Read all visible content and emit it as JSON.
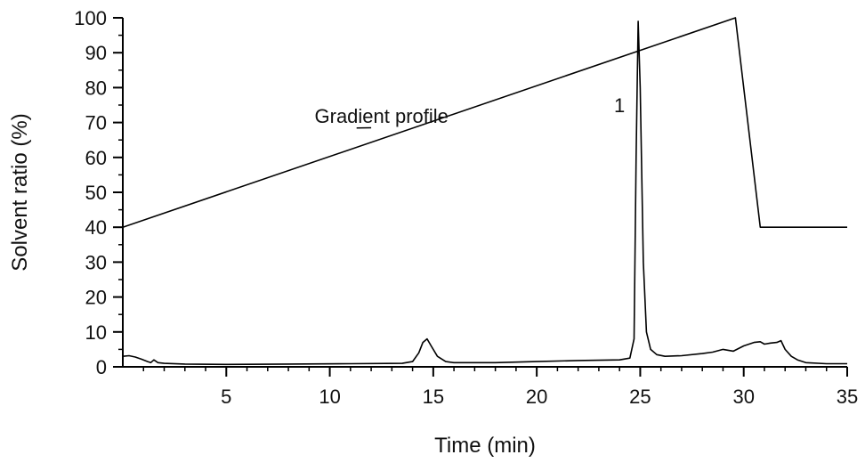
{
  "chart_data": {
    "type": "line",
    "xlabel": "Time (min)",
    "ylabel": "Solvent ratio (%)",
    "xlim": [
      0,
      35
    ],
    "ylim": [
      0,
      100
    ],
    "xticks": [
      "5",
      "10",
      "15",
      "20",
      "25",
      "30",
      "35"
    ],
    "yticks": [
      "0",
      "10",
      "20",
      "30",
      "40",
      "50",
      "60",
      "70",
      "80",
      "90",
      "100"
    ],
    "grid": false,
    "annotations": [
      {
        "text": "Gradient profile",
        "x": 12.5,
        "y": 72,
        "target_x": 12.0,
        "target_y": 68.5
      },
      {
        "text": "1",
        "x": 24.0,
        "y": 73
      }
    ],
    "series": [
      {
        "x": [
          0,
          29.6,
          30.8,
          35
        ],
        "y": [
          40,
          100,
          40,
          40
        ]
      },
      {
        "x": [
          0,
          0.3,
          0.6,
          0.9,
          1.2,
          1.35,
          1.5,
          1.7,
          2.0,
          3.0,
          5.0,
          8.0,
          11.0,
          13.5,
          14.0,
          14.3,
          14.5,
          14.7,
          14.9,
          15.2,
          15.6,
          16.0,
          18.0,
          20.0,
          22.0,
          24.0,
          24.5,
          24.7,
          24.8,
          24.9,
          25.0,
          25.15,
          25.3,
          25.5,
          25.8,
          26.2,
          27.0,
          28.0,
          28.5,
          29.0,
          29.5,
          30.0,
          30.5,
          30.8,
          31.0,
          31.3,
          31.6,
          31.8,
          32.0,
          32.3,
          32.6,
          33.0,
          34.0,
          35.0
        ],
        "y": [
          3.0,
          3.2,
          2.8,
          2.2,
          1.5,
          1.2,
          2.0,
          1.2,
          1.0,
          0.8,
          0.7,
          0.8,
          0.9,
          1.0,
          1.5,
          4.0,
          7.0,
          8.0,
          6.0,
          3.0,
          1.5,
          1.2,
          1.2,
          1.5,
          1.8,
          2.0,
          2.5,
          8.0,
          60.0,
          99.0,
          80.0,
          30.0,
          10.0,
          5.0,
          3.5,
          3.0,
          3.2,
          3.8,
          4.2,
          5.0,
          4.5,
          6.0,
          7.0,
          7.2,
          6.5,
          6.8,
          7.0,
          7.5,
          5.0,
          3.0,
          2.0,
          1.2,
          0.9,
          0.9
        ]
      }
    ]
  }
}
